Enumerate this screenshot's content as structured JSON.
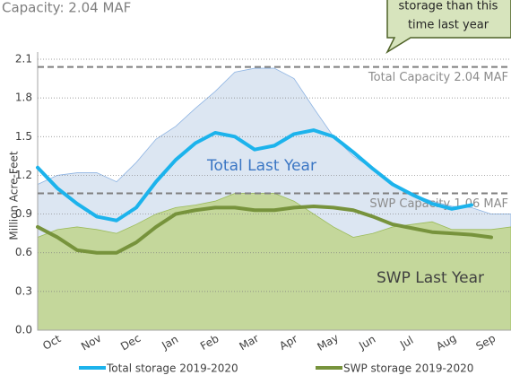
{
  "chart_data": {
    "type": "area_line",
    "title": "Capacity: 2.04 MAF",
    "callout": [
      "storage than this",
      "time last year"
    ],
    "y_axis_label": "Million Acre-Feet",
    "categories": [
      "Oct",
      "Nov",
      "Dec",
      "Jan",
      "Feb",
      "Mar",
      "Apr",
      "May",
      "Jun",
      "Jul",
      "Aug",
      "Sep"
    ],
    "x": [
      0,
      0.5,
      1,
      1.5,
      2,
      2.5,
      3,
      3.5,
      4,
      4.5,
      5,
      5.5,
      6,
      6.5,
      7,
      7.5,
      8,
      8.5,
      9,
      9.5,
      10,
      10.5,
      11,
      11.5,
      12
    ],
    "xlim": [
      0,
      12
    ],
    "ylim": [
      0,
      2.1
    ],
    "yticks": [
      {
        "value": 0,
        "label": "0.0"
      },
      0.3,
      0.6,
      0.9,
      1.2,
      1.5,
      1.8,
      2.1
    ],
    "grid": true,
    "areas": [
      {
        "name": "Total Last Year",
        "color": "#dce6f2",
        "edge": "#8eb4e3",
        "label_color": "#3a76c4",
        "values": [
          1.13,
          1.2,
          1.22,
          1.22,
          1.15,
          1.3,
          1.48,
          1.58,
          1.72,
          1.85,
          2.0,
          2.03,
          2.03,
          1.95,
          1.72,
          1.5,
          1.35,
          1.25,
          1.13,
          1.05,
          1.0,
          0.96,
          0.95,
          0.9,
          0.9
        ]
      },
      {
        "name": "SWP Last Year",
        "color": "#c4d79b",
        "edge": "#9bbb59",
        "label_color": "#404040",
        "values": [
          0.72,
          0.78,
          0.8,
          0.78,
          0.75,
          0.82,
          0.9,
          0.95,
          0.97,
          1.0,
          1.06,
          1.06,
          1.06,
          1.0,
          0.9,
          0.8,
          0.72,
          0.75,
          0.8,
          0.82,
          0.84,
          0.78,
          0.78,
          0.78,
          0.8
        ]
      }
    ],
    "series": [
      {
        "name": "Total storage 2019-2020",
        "color": "#1cb3ec",
        "values": [
          1.26,
          1.1,
          0.98,
          0.88,
          0.85,
          0.95,
          1.15,
          1.32,
          1.45,
          1.53,
          1.5,
          1.4,
          1.43,
          1.52,
          1.55,
          1.5,
          1.38,
          1.25,
          1.13,
          1.05,
          0.98,
          0.94,
          0.97,
          null,
          null
        ]
      },
      {
        "name": "SWP storage 2019-2020",
        "color": "#77933c",
        "values": [
          0.8,
          0.72,
          0.62,
          0.6,
          0.6,
          0.68,
          0.8,
          0.9,
          0.93,
          0.95,
          0.95,
          0.93,
          0.93,
          0.95,
          0.96,
          0.95,
          0.93,
          0.88,
          0.82,
          0.79,
          0.76,
          0.75,
          0.74,
          0.72,
          null
        ]
      }
    ],
    "reference_lines": [
      {
        "label": "Total Capacity 2.04 MAF",
        "value": 2.04
      },
      {
        "label": "SWP Capacity 1.06 MAF",
        "value": 1.06
      }
    ]
  }
}
